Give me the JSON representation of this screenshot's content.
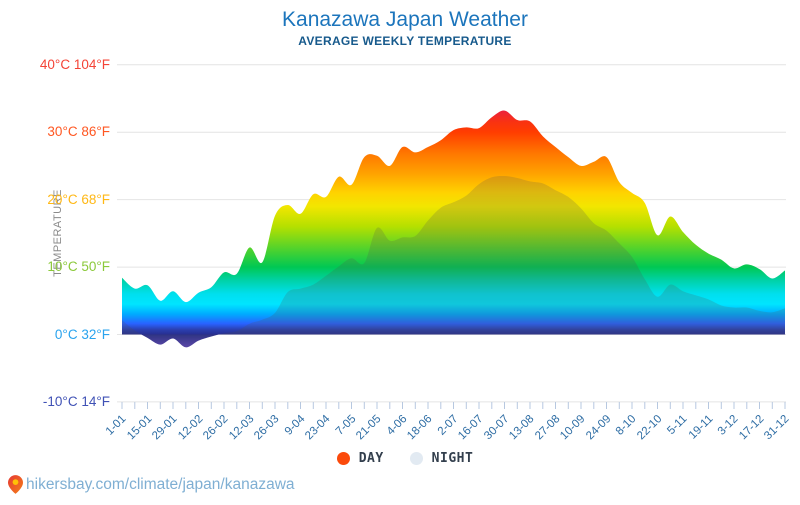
{
  "header": {
    "title": "Kanazawa Japan Weather",
    "subtitle": "AVERAGE WEEKLY TEMPERATURE"
  },
  "y_axis": {
    "title": "TEMPERATURE",
    "labels": [
      {
        "text": "40°C 104°F",
        "temp": 40,
        "color": "#f44336"
      },
      {
        "text": "30°C 86°F",
        "temp": 30,
        "color": "#ff5722"
      },
      {
        "text": "20°C 68°F",
        "temp": 20,
        "color": "#ffb815"
      },
      {
        "text": "10°C 50°F",
        "temp": 10,
        "color": "#8bc93a"
      },
      {
        "text": "0°C 32°F",
        "temp": 0,
        "color": "#29a3ee"
      },
      {
        "text": "-10°C 14°F",
        "temp": -10,
        "color": "#3f51b5"
      }
    ]
  },
  "x_axis": {
    "label_color": "#2e6da4",
    "tick_color": "#b7c8e0",
    "grid_color": "#e4e4e4"
  },
  "legend": [
    {
      "label": "DAY",
      "color": "#fb4a0b"
    },
    {
      "label": "NIGHT",
      "color": "#e2eaf2"
    }
  ],
  "footer": {
    "url": "hikersbay.com/climate/japan/kanazawa"
  },
  "chart_data": {
    "type": "area",
    "title": "Kanazawa Japan Weather",
    "subtitle": "AVERAGE WEEKLY TEMPERATURE",
    "ylabel": "TEMPERATURE",
    "ylim": [
      -10,
      40
    ],
    "yticks_c": [
      40,
      30,
      20,
      10,
      0,
      -10
    ],
    "baseline_c": 0,
    "grid": true,
    "legend_position": "bottom",
    "x_tick_interval_weeks": 1,
    "x_label_every": 2,
    "categories": [
      "1-01",
      "15-01",
      "29-01",
      "12-02",
      "26-02",
      "12-03",
      "26-03",
      "9-04",
      "23-04",
      "7-05",
      "21-05",
      "4-06",
      "18-06",
      "2-07",
      "16-07",
      "30-07",
      "13-08",
      "27-08",
      "10-09",
      "24-09",
      "8-10",
      "22-10",
      "5-11",
      "19-11",
      "3-12",
      "17-12",
      "31-12"
    ],
    "series": [
      {
        "name": "DAY",
        "unit": "°C",
        "values": [
          8.4,
          6.8,
          7.3,
          5.0,
          6.4,
          4.8,
          6.2,
          7.0,
          9.2,
          9.0,
          12.9,
          10.7,
          17.6,
          19.2,
          17.9,
          20.8,
          20.4,
          23.4,
          22.2,
          26.3,
          26.5,
          25.0,
          27.8,
          27.0,
          27.8,
          28.8,
          30.3,
          30.7,
          30.6,
          32.2,
          33.2,
          31.8,
          31.6,
          29.4,
          27.8,
          26.3,
          25.0,
          25.6,
          26.3,
          22.6,
          21.0,
          19.5,
          14.7,
          17.5,
          15.2,
          13.3,
          12.0,
          11.1,
          9.8,
          10.4,
          9.7,
          8.3,
          9.5
        ]
      },
      {
        "name": "NIGHT",
        "unit": "°C",
        "values": [
          2.1,
          0.6,
          -0.5,
          -1.5,
          -0.6,
          -1.9,
          -0.9,
          -0.3,
          0.2,
          0.5,
          1.6,
          2.2,
          3.2,
          6.3,
          6.8,
          7.4,
          8.7,
          10.1,
          11.3,
          10.6,
          15.8,
          13.9,
          14.4,
          14.6,
          16.9,
          18.8,
          19.6,
          20.6,
          22.3,
          23.3,
          23.5,
          23.2,
          22.7,
          22.4,
          21.4,
          20.4,
          18.7,
          16.5,
          15.4,
          13.5,
          11.5,
          8.2,
          5.6,
          7.4,
          6.4,
          5.8,
          5.2,
          4.3,
          4.0,
          4.0,
          3.5,
          3.3,
          3.9
        ]
      }
    ],
    "gradient_stops": [
      {
        "t": 40,
        "c": "#d32f2f"
      },
      {
        "t": 33.5,
        "c": "#e91e45"
      },
      {
        "t": 31.5,
        "c": "#f93211"
      },
      {
        "t": 30,
        "c": "#ff3d00"
      },
      {
        "t": 27,
        "c": "#ff7500"
      },
      {
        "t": 24,
        "c": "#ffa000"
      },
      {
        "t": 21,
        "c": "#ffd300"
      },
      {
        "t": 19,
        "c": "#f2e600"
      },
      {
        "t": 16,
        "c": "#b5e000"
      },
      {
        "t": 13,
        "c": "#5ad428"
      },
      {
        "t": 10,
        "c": "#00c853"
      },
      {
        "t": 8,
        "c": "#00d2a8"
      },
      {
        "t": 6,
        "c": "#00dfee"
      },
      {
        "t": 4.5,
        "c": "#00e5ff"
      },
      {
        "t": 3,
        "c": "#00aaff"
      },
      {
        "t": 1.6,
        "c": "#2962ff"
      },
      {
        "t": 0.7,
        "c": "#2b3fae"
      },
      {
        "t": 0,
        "c": "#272e91"
      },
      {
        "t": -1.5,
        "c": "#5340b5"
      },
      {
        "t": -4,
        "c": "#7e57c2"
      }
    ],
    "night_overlay": "rgba(80,80,80,0.20)"
  }
}
